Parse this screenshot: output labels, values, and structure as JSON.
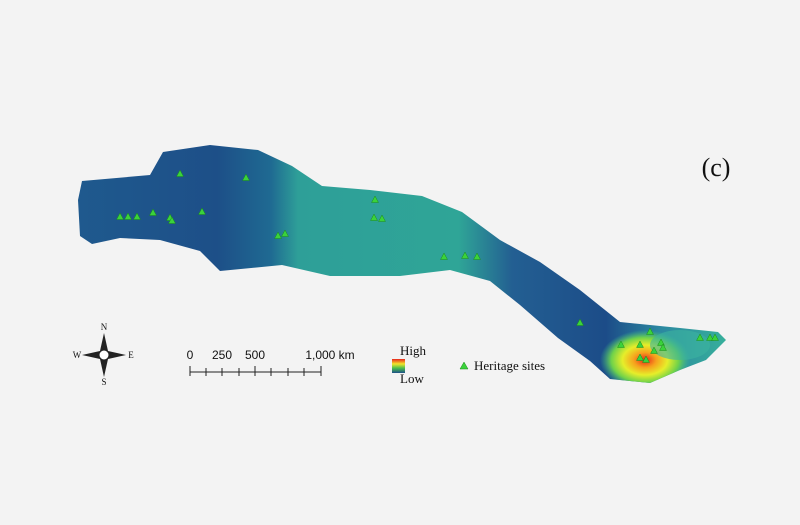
{
  "panel_label": "(c)",
  "compass": {
    "north": "N",
    "south": "S",
    "west": "W",
    "east": "E"
  },
  "scale_bar": {
    "labels": [
      "0",
      "250",
      "500",
      "1,000 km"
    ]
  },
  "legend": {
    "high": "High",
    "low": "Low",
    "sites": "Heritage sites"
  }
}
